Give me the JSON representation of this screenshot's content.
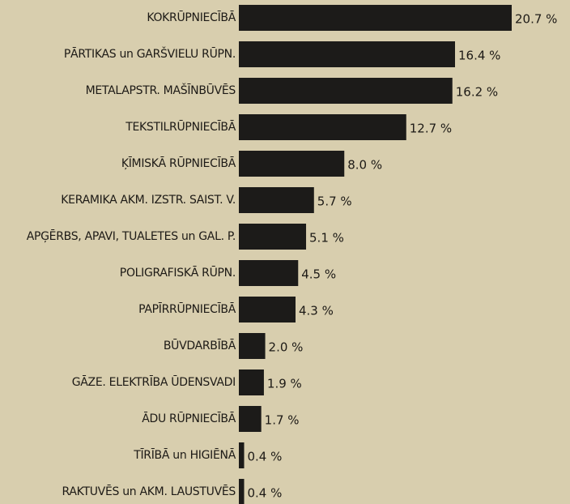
{
  "chart_data": {
    "type": "bar",
    "orientation": "horizontal",
    "color": "#1c1b19",
    "categories": [
      "KOKRŪPNIECĪBĀ",
      "PĀRTIKAS un GARŠVIELU RŪPN.",
      "METALAPSTR. MAŠĪNBŪVĒS",
      "TEKSTILRŪPNIECĪBĀ",
      "ĶĪMISKĀ RŪPNIECĪBĀ",
      "KERAMIKA AKM. IZSTR. SAIST. V.",
      "APĢĒRBS, APAVI, TUALETES un GAL. P.",
      "POLIGRAFISKĀ RŪPN.",
      "PAPĪRRŪPNIECĪBĀ",
      "BŪVDARBĪBĀ",
      "GĀZE. ELEKTRĪBA ŪDENSVADI",
      "ĀDU RŪPNIECĪBĀ",
      "TĪRĪBĀ un HIGIĒNĀ",
      "RAKTUVĒS un AKM. LAUSTUVĒS"
    ],
    "values": [
      20.7,
      16.4,
      16.2,
      12.7,
      8.0,
      5.7,
      5.1,
      4.5,
      4.3,
      2.0,
      1.9,
      1.7,
      0.4,
      0.4
    ],
    "value_labels": [
      "20.7 %",
      "16.4 %",
      "16.2 %",
      "12.7 %",
      "8.0 %",
      "5.7 %",
      "5.1 %",
      "4.5 %",
      "4.3 %",
      "2.0 %",
      "1.9 %",
      "1.7 %",
      "0.4 %",
      "0.4 %"
    ]
  }
}
